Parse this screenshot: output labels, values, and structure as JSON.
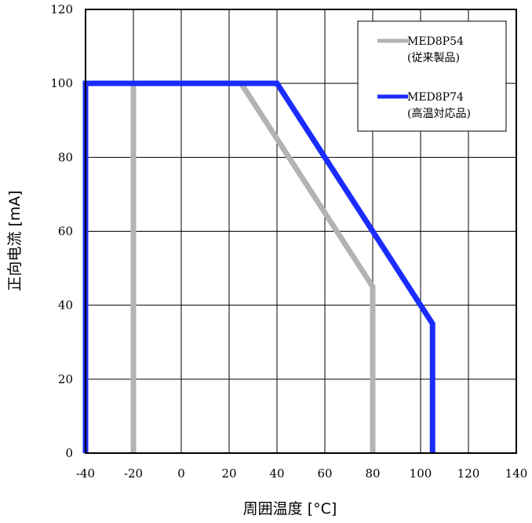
{
  "chart_data": {
    "type": "line",
    "xlabel": "周囲温度 [°C]",
    "ylabel": "正向电流 [mA]",
    "xlim": [
      -40,
      140
    ],
    "ylim": [
      0,
      120
    ],
    "xticks": [
      -40,
      -20,
      0,
      20,
      40,
      60,
      80,
      100,
      120,
      140
    ],
    "yticks": [
      0,
      20,
      40,
      60,
      80,
      100,
      120
    ],
    "xtick_labels": [
      "-40",
      "-20",
      "0",
      "20",
      "40",
      "60",
      "80",
      "100",
      "120",
      "140"
    ],
    "ytick_labels": [
      "0",
      "20",
      "40",
      "60",
      "80",
      "100",
      "120"
    ],
    "grid": true,
    "legend_position": "top-right",
    "series": [
      {
        "name": "MED8P54",
        "subtitle": "(従来製品)",
        "color": "#b3b3b3",
        "x": [
          -20,
          -20,
          25,
          80,
          80
        ],
        "y": [
          0,
          100,
          100,
          45,
          0
        ]
      },
      {
        "name": "MED8P74",
        "subtitle": "(高温対応品)",
        "color": "#1a2cff",
        "x": [
          -40,
          -40,
          40,
          105,
          105
        ],
        "y": [
          0,
          100,
          100,
          35,
          0
        ]
      }
    ]
  }
}
